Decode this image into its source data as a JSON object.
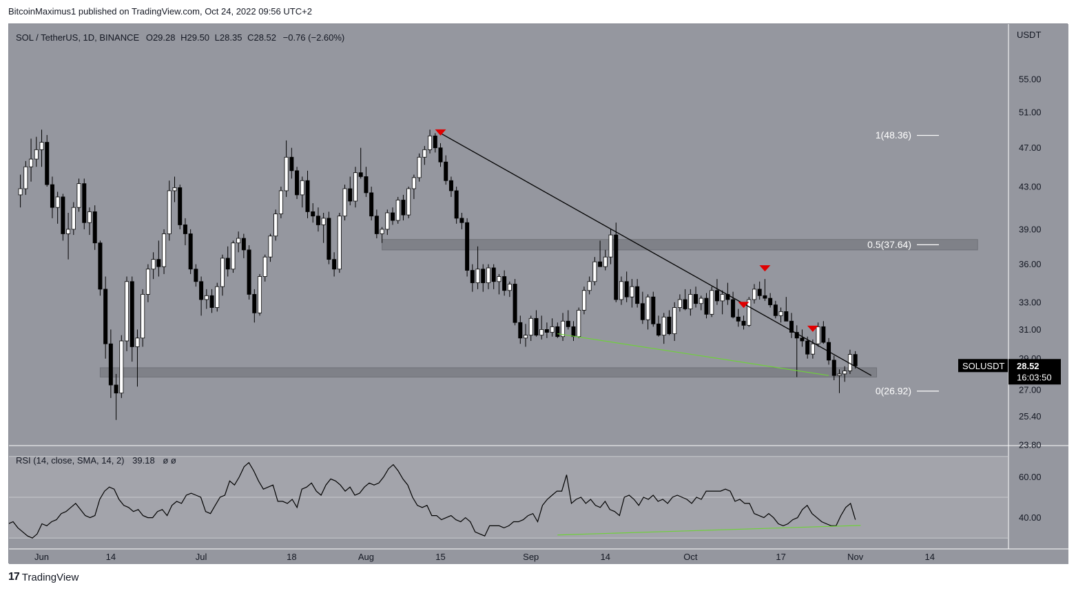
{
  "header": {
    "publish_line": "BitcoinMaximus1 published on TradingView.com, Oct 24, 2022 09:56 UTC+2"
  },
  "footer": {
    "brand": "TradingView",
    "logo_glyph": "17"
  },
  "legend": {
    "symbol": "SOL / TetherUS, 1D, BINANCE",
    "o_label": "O",
    "o_value": "29.28",
    "h_label": "H",
    "h_value": "29.50",
    "l_label": "L",
    "l_value": "28.35",
    "c_label": "C",
    "c_value": "28.52",
    "change": "−0.76 (−2.60%)"
  },
  "price_axis": {
    "currency": "USDT"
  },
  "price_tag": {
    "symbol": "SOLUSDT",
    "price": "28.52",
    "countdown": "16:03:50"
  },
  "rsi_legend": {
    "label": "RSI (14, close, SMA, 14, 2)",
    "value": "39.18",
    "extra": "ø  ø"
  },
  "colors": {
    "pane_bg": "#95979f",
    "rsi_band": "#a3a4ab",
    "zone": "#7d7f86",
    "marker": "#e00000",
    "divergence": "#6fd13a",
    "price_tag": "#000000"
  },
  "chart_data": {
    "type": "candlestick",
    "title": "SOL / TetherUS, 1D, BINANCE",
    "ylabel": "USDT",
    "scale": "log",
    "ylim": [
      23.8,
      60
    ],
    "y_ticks": [
      "55.00",
      "51.00",
      "47.00",
      "43.00",
      "39.00",
      "36.00",
      "33.00",
      "31.00",
      "29.00",
      "27.00",
      "25.40",
      "23.80"
    ],
    "x_ticks": [
      "Jun",
      "14",
      "Jul",
      "18",
      "Aug",
      "15",
      "Sep",
      "14",
      "Oct",
      "17",
      "Nov",
      "14"
    ],
    "x_tick_days": [
      0,
      13,
      30,
      47,
      61,
      75,
      92,
      106,
      122,
      139,
      153,
      167
    ],
    "first_candle_day": -4,
    "candles": [
      [
        42.2,
        44.2,
        41.0,
        42.8
      ],
      [
        42.8,
        45.6,
        42.2,
        45.0
      ],
      [
        45.0,
        48.0,
        43.5,
        45.8
      ],
      [
        45.8,
        48.2,
        45.0,
        46.8
      ],
      [
        46.8,
        49.0,
        45.0,
        47.6
      ],
      [
        47.6,
        48.4,
        43.0,
        43.2
      ],
      [
        43.2,
        44.0,
        40.0,
        41.0
      ],
      [
        41.0,
        42.5,
        39.5,
        42.0
      ],
      [
        42.0,
        42.3,
        38.0,
        38.6
      ],
      [
        38.6,
        40.5,
        36.4,
        39.0
      ],
      [
        39.0,
        41.5,
        38.5,
        41.0
      ],
      [
        41.0,
        43.8,
        40.6,
        43.3
      ],
      [
        43.3,
        43.8,
        39.0,
        39.6
      ],
      [
        39.6,
        41.0,
        38.5,
        40.6
      ],
      [
        40.6,
        41.2,
        37.2,
        37.8
      ],
      [
        37.8,
        38.0,
        33.5,
        34.0
      ],
      [
        34.0,
        35.0,
        29.0,
        30.0
      ],
      [
        30.0,
        31.0,
        26.5,
        27.3
      ],
      [
        27.3,
        28.0,
        25.2,
        26.8
      ],
      [
        26.8,
        30.6,
        26.5,
        30.2
      ],
      [
        30.2,
        35.0,
        29.5,
        34.6
      ],
      [
        34.6,
        35.0,
        28.8,
        29.8
      ],
      [
        29.8,
        31.0,
        27.2,
        30.4
      ],
      [
        30.4,
        34.0,
        29.8,
        33.6
      ],
      [
        33.6,
        36.0,
        33.0,
        35.6
      ],
      [
        35.6,
        37.0,
        34.8,
        36.4
      ],
      [
        36.4,
        38.0,
        35.0,
        35.8
      ],
      [
        35.8,
        39.0,
        35.2,
        38.6
      ],
      [
        38.6,
        43.6,
        38.0,
        42.6
      ],
      [
        42.6,
        44.0,
        41.5,
        42.9
      ],
      [
        42.9,
        43.2,
        39.0,
        39.4
      ],
      [
        39.4,
        40.0,
        37.6,
        38.6
      ],
      [
        38.6,
        39.0,
        35.2,
        35.6
      ],
      [
        35.6,
        36.0,
        34.2,
        34.6
      ],
      [
        34.6,
        35.0,
        32.0,
        33.2
      ],
      [
        33.2,
        34.0,
        32.5,
        33.5
      ],
      [
        33.5,
        34.0,
        32.2,
        32.6
      ],
      [
        32.6,
        34.5,
        32.3,
        34.2
      ],
      [
        34.2,
        36.8,
        33.5,
        36.5
      ],
      [
        36.5,
        37.5,
        35.0,
        35.6
      ],
      [
        35.6,
        38.0,
        35.3,
        37.8
      ],
      [
        37.8,
        38.8,
        37.0,
        38.2
      ],
      [
        38.2,
        38.6,
        36.5,
        37.2
      ],
      [
        37.2,
        37.6,
        33.2,
        33.6
      ],
      [
        33.6,
        34.0,
        31.5,
        32.2
      ],
      [
        32.2,
        35.2,
        32.0,
        35.0
      ],
      [
        35.0,
        36.8,
        34.6,
        36.6
      ],
      [
        36.6,
        38.6,
        36.2,
        38.4
      ],
      [
        38.4,
        40.8,
        38.0,
        40.4
      ],
      [
        40.4,
        43.0,
        40.0,
        42.6
      ],
      [
        42.6,
        47.8,
        42.0,
        46.0
      ],
      [
        46.0,
        47.0,
        43.8,
        44.6
      ],
      [
        44.6,
        45.0,
        41.8,
        42.2
      ],
      [
        42.2,
        44.0,
        41.0,
        43.6
      ],
      [
        43.6,
        44.6,
        40.0,
        40.6
      ],
      [
        40.6,
        41.4,
        39.6,
        40.2
      ],
      [
        40.2,
        41.0,
        38.8,
        39.4
      ],
      [
        39.4,
        40.5,
        37.8,
        40.0
      ],
      [
        40.0,
        40.6,
        36.0,
        36.4
      ],
      [
        36.4,
        37.0,
        35.0,
        35.6
      ],
      [
        35.6,
        40.5,
        35.3,
        40.2
      ],
      [
        40.2,
        43.2,
        39.8,
        42.8
      ],
      [
        42.8,
        44.0,
        41.2,
        41.6
      ],
      [
        41.6,
        45.0,
        41.0,
        44.4
      ],
      [
        44.4,
        47.0,
        43.8,
        44.0
      ],
      [
        44.0,
        45.0,
        42.0,
        42.4
      ],
      [
        42.4,
        43.0,
        39.8,
        40.2
      ],
      [
        40.2,
        40.8,
        38.2,
        38.6
      ],
      [
        38.6,
        39.2,
        37.8,
        39.0
      ],
      [
        39.0,
        40.8,
        38.5,
        40.5
      ],
      [
        40.5,
        41.0,
        39.4,
        39.8
      ],
      [
        39.8,
        42.0,
        39.5,
        41.7
      ],
      [
        41.7,
        42.2,
        39.8,
        40.3
      ],
      [
        40.3,
        43.0,
        40.0,
        42.8
      ],
      [
        42.8,
        44.2,
        41.8,
        43.9
      ],
      [
        43.9,
        46.4,
        43.5,
        46.0
      ],
      [
        46.0,
        47.2,
        45.2,
        46.8
      ],
      [
        46.8,
        49.0,
        46.4,
        48.3
      ],
      [
        48.3,
        48.6,
        46.5,
        47.0
      ],
      [
        47.0,
        47.5,
        45.0,
        45.5
      ],
      [
        45.5,
        46.2,
        43.2,
        43.6
      ],
      [
        43.6,
        44.0,
        42.0,
        42.6
      ],
      [
        42.6,
        43.0,
        39.5,
        40.0
      ],
      [
        40.0,
        40.5,
        39.0,
        39.6
      ],
      [
        39.6,
        40.0,
        35.0,
        35.5
      ],
      [
        35.5,
        36.0,
        33.8,
        34.5
      ],
      [
        34.5,
        37.5,
        34.0,
        35.6
      ],
      [
        35.6,
        36.0,
        33.8,
        34.5
      ],
      [
        34.5,
        36.0,
        34.0,
        35.7
      ],
      [
        35.7,
        36.0,
        34.0,
        34.6
      ],
      [
        34.6,
        35.2,
        33.6,
        35.0
      ],
      [
        35.0,
        35.5,
        33.5,
        33.9
      ],
      [
        33.9,
        34.6,
        33.4,
        34.4
      ],
      [
        34.4,
        34.8,
        31.3,
        31.5
      ],
      [
        31.5,
        32.0,
        30.0,
        30.4
      ],
      [
        30.4,
        31.4,
        29.8,
        30.6
      ],
      [
        30.6,
        32.0,
        30.2,
        31.8
      ],
      [
        31.8,
        32.4,
        30.5,
        30.6
      ],
      [
        30.6,
        32.0,
        30.3,
        31.0
      ],
      [
        31.0,
        31.5,
        30.4,
        30.8
      ],
      [
        30.8,
        31.8,
        30.5,
        31.2
      ],
      [
        31.2,
        31.5,
        30.4,
        30.5
      ],
      [
        30.5,
        32.2,
        30.2,
        31.6
      ],
      [
        31.6,
        32.4,
        31.0,
        31.2
      ],
      [
        31.2,
        31.6,
        30.2,
        30.5
      ],
      [
        30.5,
        32.6,
        30.4,
        32.4
      ],
      [
        32.4,
        34.2,
        32.1,
        33.9
      ],
      [
        33.9,
        35.0,
        33.6,
        34.6
      ],
      [
        34.6,
        36.6,
        34.3,
        36.2
      ],
      [
        36.2,
        38.0,
        35.8,
        35.8
      ],
      [
        35.8,
        37.2,
        35.5,
        36.6
      ],
      [
        36.6,
        39.0,
        36.0,
        38.5
      ],
      [
        38.5,
        39.6,
        33.0,
        33.2
      ],
      [
        33.2,
        35.0,
        32.8,
        34.6
      ],
      [
        34.6,
        35.4,
        33.0,
        33.4
      ],
      [
        33.4,
        34.8,
        32.6,
        34.2
      ],
      [
        34.2,
        34.8,
        32.6,
        32.9
      ],
      [
        32.9,
        33.8,
        31.4,
        31.7
      ],
      [
        31.7,
        33.6,
        31.0,
        33.4
      ],
      [
        33.4,
        33.8,
        31.2,
        31.4
      ],
      [
        31.4,
        32.0,
        30.5,
        30.6
      ],
      [
        30.6,
        32.2,
        30.0,
        31.9
      ],
      [
        31.9,
        32.4,
        30.6,
        30.7
      ],
      [
        30.7,
        33.0,
        30.2,
        32.6
      ],
      [
        32.6,
        33.6,
        32.3,
        33.2
      ],
      [
        33.2,
        34.0,
        32.4,
        32.5
      ],
      [
        32.5,
        34.0,
        32.0,
        33.6
      ],
      [
        33.6,
        34.2,
        32.6,
        32.9
      ],
      [
        32.9,
        33.5,
        32.4,
        33.3
      ],
      [
        33.3,
        33.7,
        31.8,
        32.1
      ],
      [
        32.1,
        34.2,
        31.9,
        33.9
      ],
      [
        33.9,
        34.8,
        32.8,
        33.1
      ],
      [
        33.1,
        33.9,
        32.1,
        33.6
      ],
      [
        33.6,
        34.5,
        32.8,
        33.2
      ],
      [
        33.2,
        33.8,
        31.8,
        31.9
      ],
      [
        31.9,
        32.5,
        31.2,
        31.6
      ],
      [
        31.6,
        32.0,
        31.0,
        31.3
      ],
      [
        31.3,
        33.4,
        31.2,
        33.2
      ],
      [
        33.2,
        34.4,
        32.9,
        34.0
      ],
      [
        34.0,
        34.6,
        33.2,
        33.5
      ],
      [
        33.5,
        34.8,
        33.1,
        33.3
      ],
      [
        33.3,
        33.7,
        32.6,
        32.8
      ],
      [
        32.8,
        33.1,
        31.8,
        32.0
      ],
      [
        32.0,
        32.6,
        31.5,
        32.3
      ],
      [
        32.3,
        33.4,
        31.8,
        31.6
      ],
      [
        31.6,
        32.2,
        30.4,
        30.8
      ],
      [
        30.8,
        31.3,
        27.8,
        30.4
      ],
      [
        30.4,
        31.0,
        29.8,
        30.2
      ],
      [
        30.2,
        30.5,
        29.0,
        29.3
      ],
      [
        29.3,
        30.3,
        29.0,
        30.0
      ],
      [
        30.0,
        31.5,
        29.8,
        31.2
      ],
      [
        31.2,
        31.6,
        30.0,
        30.1
      ],
      [
        30.1,
        30.4,
        28.6,
        28.9
      ],
      [
        28.9,
        29.2,
        27.6,
        27.9
      ],
      [
        27.9,
        28.3,
        26.8,
        28.0
      ],
      [
        28.0,
        28.5,
        27.5,
        28.2
      ],
      [
        28.2,
        29.6,
        28.0,
        29.28
      ],
      [
        29.28,
        29.5,
        28.35,
        28.52
      ]
    ],
    "resistance_line": {
      "start": {
        "day": 75,
        "price": 48.6
      },
      "end": {
        "day": 156,
        "price": 27.9
      }
    },
    "support_divergence_line": {
      "start": {
        "day": 97,
        "price": 30.7
      },
      "end": {
        "day": 148,
        "price": 27.9
      }
    },
    "horizontal_zones": [
      {
        "from_day": 64,
        "to_day": 176,
        "low": 37.2,
        "high": 38.1
      },
      {
        "from_day": 11,
        "to_day": 157,
        "low": 27.8,
        "high": 28.4
      }
    ],
    "rejection_markers_day": [
      75,
      132,
      136,
      145
    ],
    "fibonacci": [
      {
        "label": "1(48.36)",
        "price": 48.36
      },
      {
        "label": "0.5(37.64)",
        "price": 37.64
      },
      {
        "label": "0(26.92)",
        "price": 26.92
      }
    ],
    "rsi": {
      "name": "RSI (14, close, SMA, 14, 2)",
      "value": "39.18",
      "ylim": [
        25,
        75
      ],
      "levels": [
        70,
        50,
        30
      ],
      "y_ticks": [
        "60.00",
        "40.00"
      ],
      "values": [
        34,
        33,
        35,
        36,
        38,
        37,
        33,
        34,
        33,
        32,
        34,
        33,
        38,
        36,
        37,
        38,
        35,
        33,
        31,
        30,
        32,
        37,
        36,
        38,
        39,
        42,
        43,
        45,
        47,
        44,
        41,
        40,
        41,
        49,
        53,
        55,
        54,
        49,
        46,
        45,
        43,
        44,
        41,
        40,
        40,
        43,
        44,
        41,
        46,
        48,
        47,
        51,
        52,
        51,
        50,
        43,
        42,
        46,
        50,
        51,
        58,
        56,
        60,
        65,
        67,
        63,
        58,
        54,
        55,
        56,
        48,
        48,
        47,
        49,
        45,
        54,
        55,
        57,
        53,
        51,
        56,
        59,
        58,
        56,
        53,
        55,
        51,
        52,
        55,
        57,
        56,
        57,
        60,
        64,
        66,
        63,
        59,
        56,
        50,
        46,
        45,
        46,
        41,
        41,
        39,
        40,
        41,
        39,
        38,
        40,
        38,
        33,
        32,
        31,
        36,
        36,
        36,
        35,
        36,
        38,
        38,
        39,
        41,
        42,
        38,
        46,
        49,
        51,
        53,
        53,
        61,
        47,
        49,
        50,
        47,
        49,
        46,
        45,
        48,
        44,
        43,
        41,
        50,
        51,
        49,
        46,
        50,
        49,
        51,
        48,
        49,
        47,
        50,
        51,
        50,
        49,
        47,
        50,
        49,
        53,
        53,
        53,
        53,
        54,
        53,
        48,
        49,
        47,
        47,
        42,
        41,
        40,
        42,
        40,
        37,
        36,
        37,
        39,
        40,
        44,
        46,
        42,
        40,
        38,
        37,
        36,
        36,
        41,
        45,
        47,
        39
      ]
    },
    "rsi_divergence_line": {
      "start": {
        "day": 97,
        "value": 31.5
      },
      "end": {
        "day": 154,
        "value": 36.2
      }
    }
  }
}
